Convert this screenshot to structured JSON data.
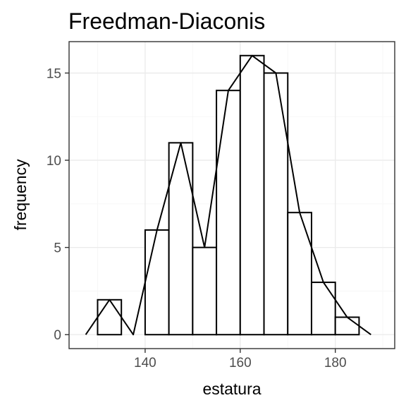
{
  "chart_data": {
    "type": "bar",
    "subtype": "histogram-with-frequency-polygon",
    "title": "Freedman-Diaconis",
    "xlabel": "estatura",
    "ylabel": "frequency",
    "xlim": [
      124,
      192.5
    ],
    "ylim": [
      -0.8,
      16.8
    ],
    "x_ticks": [
      140,
      160,
      180
    ],
    "y_ticks": [
      0,
      5,
      10,
      15
    ],
    "grid": true,
    "bins": [
      {
        "start": 130,
        "end": 135,
        "count": 2
      },
      {
        "start": 135,
        "end": 140,
        "count": 0
      },
      {
        "start": 140,
        "end": 145,
        "count": 6
      },
      {
        "start": 145,
        "end": 150,
        "count": 11
      },
      {
        "start": 150,
        "end": 155,
        "count": 5
      },
      {
        "start": 155,
        "end": 160,
        "count": 14
      },
      {
        "start": 160,
        "end": 165,
        "count": 16
      },
      {
        "start": 165,
        "end": 170,
        "count": 15
      },
      {
        "start": 170,
        "end": 175,
        "count": 7
      },
      {
        "start": 175,
        "end": 180,
        "count": 3
      },
      {
        "start": 180,
        "end": 185,
        "count": 1
      }
    ],
    "polygon": {
      "x": [
        127.5,
        132.5,
        137.5,
        142.5,
        147.5,
        152.5,
        157.5,
        162.5,
        167.5,
        172.5,
        177.5,
        182.5,
        187.5
      ],
      "y": [
        0,
        2,
        0,
        6,
        11,
        5,
        14,
        16,
        15,
        7,
        3,
        1,
        0
      ]
    }
  }
}
